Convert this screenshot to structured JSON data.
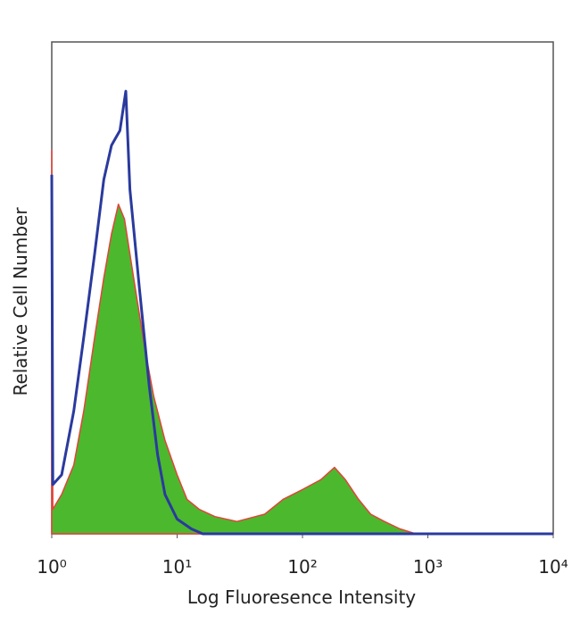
{
  "chart_data": {
    "type": "histogram-overlay",
    "xlabel": "Log Fluoresence Intensity",
    "ylabel": "Relative Cell Number",
    "xscale": "log",
    "xlim": [
      1,
      10000
    ],
    "ylim": [
      0,
      100
    ],
    "xticks": [
      {
        "value": 1,
        "label": "10⁰"
      },
      {
        "value": 10,
        "label": "10¹"
      },
      {
        "value": 100,
        "label": "10²"
      },
      {
        "value": 1000,
        "label": "10³"
      },
      {
        "value": 10000,
        "label": "10⁴"
      }
    ],
    "series": [
      {
        "color": "#e0453a",
        "fill": "#4cb82e",
        "x": [
          1.0,
          1.02,
          1.2,
          1.5,
          1.8,
          2.2,
          2.6,
          3.0,
          3.4,
          3.8,
          4.5,
          5.5,
          6.5,
          8,
          10,
          12,
          15,
          20,
          30,
          50,
          70,
          100,
          140,
          180,
          220,
          280,
          350,
          450,
          600,
          800,
          10000
        ],
        "values": [
          78,
          5,
          8,
          14,
          25,
          40,
          52,
          61,
          67,
          64,
          52,
          38,
          28,
          19,
          12,
          7,
          5,
          3.5,
          2.5,
          4,
          7,
          9,
          11,
          13.5,
          11,
          7,
          4,
          2.5,
          1,
          0,
          0
        ]
      },
      {
        "color": "#2a3a9e",
        "x": [
          1.0,
          1.02,
          1.2,
          1.5,
          1.8,
          2.2,
          2.6,
          3.0,
          3.5,
          3.9,
          4.2,
          5,
          6,
          7,
          8,
          10,
          13,
          16,
          10000
        ],
        "values": [
          73,
          10,
          12,
          25,
          40,
          57,
          72,
          79,
          82,
          90,
          70,
          50,
          30,
          16,
          8,
          3,
          1,
          0,
          0
        ]
      }
    ]
  }
}
